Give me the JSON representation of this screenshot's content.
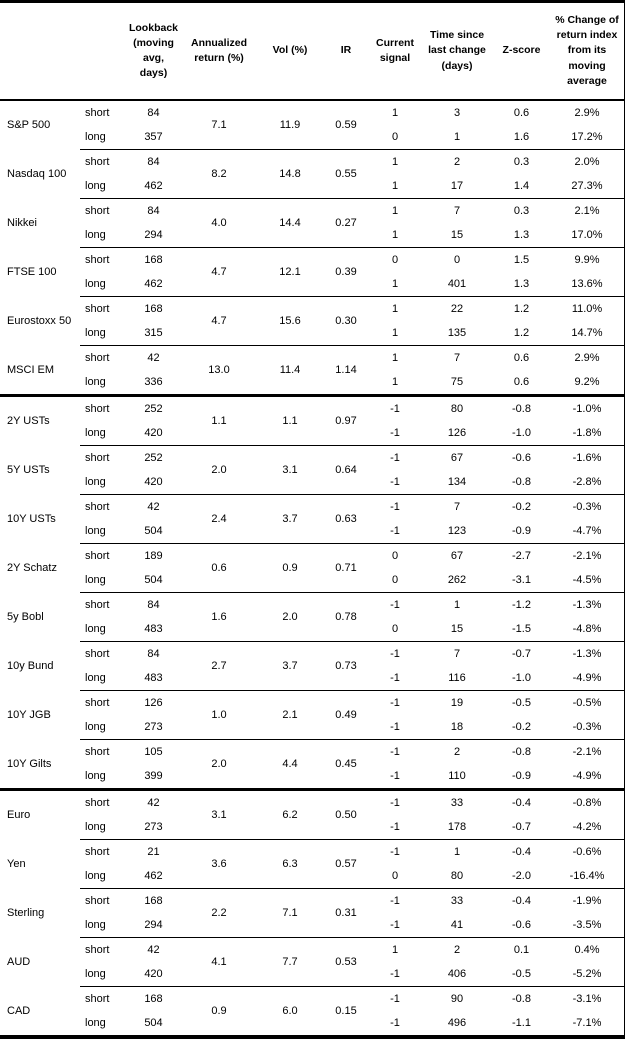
{
  "table": {
    "columns": [
      {
        "key": "asset",
        "label": ""
      },
      {
        "key": "horizon",
        "label": ""
      },
      {
        "key": "lookback",
        "label": "Lookback (moving avg, days)"
      },
      {
        "key": "annualized_return",
        "label": "Annualized return (%)"
      },
      {
        "key": "vol",
        "label": "Vol (%)"
      },
      {
        "key": "ir",
        "label": "IR"
      },
      {
        "key": "current_signal",
        "label": "Current signal"
      },
      {
        "key": "time_since_last_change",
        "label": "Time since last change (days)"
      },
      {
        "key": "z_score",
        "label": "Z-score"
      },
      {
        "key": "pct_change",
        "label": "% Change of return index from its moving average"
      }
    ],
    "sections": [
      {
        "assets": [
          {
            "name": "S&P 500",
            "annualized_return": "7.1",
            "vol": "11.9",
            "ir": "0.59",
            "rows": [
              {
                "horizon": "short",
                "lookback": "84",
                "current_signal": "1",
                "time_since_last_change": "3",
                "z_score": "0.6",
                "pct_change": "2.9%"
              },
              {
                "horizon": "long",
                "lookback": "357",
                "current_signal": "0",
                "time_since_last_change": "1",
                "z_score": "1.6",
                "pct_change": "17.2%"
              }
            ]
          },
          {
            "name": "Nasdaq 100",
            "annualized_return": "8.2",
            "vol": "14.8",
            "ir": "0.55",
            "rows": [
              {
                "horizon": "short",
                "lookback": "84",
                "current_signal": "1",
                "time_since_last_change": "2",
                "z_score": "0.3",
                "pct_change": "2.0%"
              },
              {
                "horizon": "long",
                "lookback": "462",
                "current_signal": "1",
                "time_since_last_change": "17",
                "z_score": "1.4",
                "pct_change": "27.3%"
              }
            ]
          },
          {
            "name": "Nikkei",
            "annualized_return": "4.0",
            "vol": "14.4",
            "ir": "0.27",
            "rows": [
              {
                "horizon": "short",
                "lookback": "84",
                "current_signal": "1",
                "time_since_last_change": "7",
                "z_score": "0.3",
                "pct_change": "2.1%"
              },
              {
                "horizon": "long",
                "lookback": "294",
                "current_signal": "1",
                "time_since_last_change": "15",
                "z_score": "1.3",
                "pct_change": "17.0%"
              }
            ]
          },
          {
            "name": "FTSE 100",
            "annualized_return": "4.7",
            "vol": "12.1",
            "ir": "0.39",
            "rows": [
              {
                "horizon": "short",
                "lookback": "168",
                "current_signal": "0",
                "time_since_last_change": "0",
                "z_score": "1.5",
                "pct_change": "9.9%"
              },
              {
                "horizon": "long",
                "lookback": "462",
                "current_signal": "1",
                "time_since_last_change": "401",
                "z_score": "1.3",
                "pct_change": "13.6%"
              }
            ]
          },
          {
            "name": "Eurostoxx 50",
            "annualized_return": "4.7",
            "vol": "15.6",
            "ir": "0.30",
            "rows": [
              {
                "horizon": "short",
                "lookback": "168",
                "current_signal": "1",
                "time_since_last_change": "22",
                "z_score": "1.2",
                "pct_change": "11.0%"
              },
              {
                "horizon": "long",
                "lookback": "315",
                "current_signal": "1",
                "time_since_last_change": "135",
                "z_score": "1.2",
                "pct_change": "14.7%"
              }
            ]
          },
          {
            "name": "MSCI EM",
            "annualized_return": "13.0",
            "vol": "11.4",
            "ir": "1.14",
            "rows": [
              {
                "horizon": "short",
                "lookback": "42",
                "current_signal": "1",
                "time_since_last_change": "7",
                "z_score": "0.6",
                "pct_change": "2.9%"
              },
              {
                "horizon": "long",
                "lookback": "336",
                "current_signal": "1",
                "time_since_last_change": "75",
                "z_score": "0.6",
                "pct_change": "9.2%"
              }
            ]
          }
        ]
      },
      {
        "assets": [
          {
            "name": "2Y USTs",
            "annualized_return": "1.1",
            "vol": "1.1",
            "ir": "0.97",
            "rows": [
              {
                "horizon": "short",
                "lookback": "252",
                "current_signal": "-1",
                "time_since_last_change": "80",
                "z_score": "-0.8",
                "pct_change": "-1.0%"
              },
              {
                "horizon": "long",
                "lookback": "420",
                "current_signal": "-1",
                "time_since_last_change": "126",
                "z_score": "-1.0",
                "pct_change": "-1.8%"
              }
            ]
          },
          {
            "name": "5Y USTs",
            "annualized_return": "2.0",
            "vol": "3.1",
            "ir": "0.64",
            "rows": [
              {
                "horizon": "short",
                "lookback": "252",
                "current_signal": "-1",
                "time_since_last_change": "67",
                "z_score": "-0.6",
                "pct_change": "-1.6%"
              },
              {
                "horizon": "long",
                "lookback": "420",
                "current_signal": "-1",
                "time_since_last_change": "134",
                "z_score": "-0.8",
                "pct_change": "-2.8%"
              }
            ]
          },
          {
            "name": "10Y USTs",
            "annualized_return": "2.4",
            "vol": "3.7",
            "ir": "0.63",
            "rows": [
              {
                "horizon": "short",
                "lookback": "42",
                "current_signal": "-1",
                "time_since_last_change": "7",
                "z_score": "-0.2",
                "pct_change": "-0.3%"
              },
              {
                "horizon": "long",
                "lookback": "504",
                "current_signal": "-1",
                "time_since_last_change": "123",
                "z_score": "-0.9",
                "pct_change": "-4.7%"
              }
            ]
          },
          {
            "name": "2Y Schatz",
            "annualized_return": "0.6",
            "vol": "0.9",
            "ir": "0.71",
            "rows": [
              {
                "horizon": "short",
                "lookback": "189",
                "current_signal": "0",
                "time_since_last_change": "67",
                "z_score": "-2.7",
                "pct_change": "-2.1%"
              },
              {
                "horizon": "long",
                "lookback": "504",
                "current_signal": "0",
                "time_since_last_change": "262",
                "z_score": "-3.1",
                "pct_change": "-4.5%"
              }
            ]
          },
          {
            "name": "5y Bobl",
            "annualized_return": "1.6",
            "vol": "2.0",
            "ir": "0.78",
            "rows": [
              {
                "horizon": "short",
                "lookback": "84",
                "current_signal": "-1",
                "time_since_last_change": "1",
                "z_score": "-1.2",
                "pct_change": "-1.3%"
              },
              {
                "horizon": "long",
                "lookback": "483",
                "current_signal": "0",
                "time_since_last_change": "15",
                "z_score": "-1.5",
                "pct_change": "-4.8%"
              }
            ]
          },
          {
            "name": "10y Bund",
            "annualized_return": "2.7",
            "vol": "3.7",
            "ir": "0.73",
            "rows": [
              {
                "horizon": "short",
                "lookback": "84",
                "current_signal": "-1",
                "time_since_last_change": "7",
                "z_score": "-0.7",
                "pct_change": "-1.3%"
              },
              {
                "horizon": "long",
                "lookback": "483",
                "current_signal": "-1",
                "time_since_last_change": "116",
                "z_score": "-1.0",
                "pct_change": "-4.9%"
              }
            ]
          },
          {
            "name": "10Y JGB",
            "annualized_return": "1.0",
            "vol": "2.1",
            "ir": "0.49",
            "rows": [
              {
                "horizon": "short",
                "lookback": "126",
                "current_signal": "-1",
                "time_since_last_change": "19",
                "z_score": "-0.5",
                "pct_change": "-0.5%"
              },
              {
                "horizon": "long",
                "lookback": "273",
                "current_signal": "-1",
                "time_since_last_change": "18",
                "z_score": "-0.2",
                "pct_change": "-0.3%"
              }
            ]
          },
          {
            "name": "10Y Gilts",
            "annualized_return": "2.0",
            "vol": "4.4",
            "ir": "0.45",
            "rows": [
              {
                "horizon": "short",
                "lookback": "105",
                "current_signal": "-1",
                "time_since_last_change": "2",
                "z_score": "-0.8",
                "pct_change": "-2.1%"
              },
              {
                "horizon": "long",
                "lookback": "399",
                "current_signal": "-1",
                "time_since_last_change": "110",
                "z_score": "-0.9",
                "pct_change": "-4.9%"
              }
            ]
          }
        ]
      },
      {
        "assets": [
          {
            "name": "Euro",
            "annualized_return": "3.1",
            "vol": "6.2",
            "ir": "0.50",
            "rows": [
              {
                "horizon": "short",
                "lookback": "42",
                "current_signal": "-1",
                "time_since_last_change": "33",
                "z_score": "-0.4",
                "pct_change": "-0.8%"
              },
              {
                "horizon": "long",
                "lookback": "273",
                "current_signal": "-1",
                "time_since_last_change": "178",
                "z_score": "-0.7",
                "pct_change": "-4.2%"
              }
            ]
          },
          {
            "name": "Yen",
            "annualized_return": "3.6",
            "vol": "6.3",
            "ir": "0.57",
            "rows": [
              {
                "horizon": "short",
                "lookback": "21",
                "current_signal": "-1",
                "time_since_last_change": "1",
                "z_score": "-0.4",
                "pct_change": "-0.6%"
              },
              {
                "horizon": "long",
                "lookback": "462",
                "current_signal": "0",
                "time_since_last_change": "80",
                "z_score": "-2.0",
                "pct_change": "-16.4%"
              }
            ]
          },
          {
            "name": "Sterling",
            "annualized_return": "2.2",
            "vol": "7.1",
            "ir": "0.31",
            "rows": [
              {
                "horizon": "short",
                "lookback": "168",
                "current_signal": "-1",
                "time_since_last_change": "33",
                "z_score": "-0.4",
                "pct_change": "-1.9%"
              },
              {
                "horizon": "long",
                "lookback": "294",
                "current_signal": "-1",
                "time_since_last_change": "41",
                "z_score": "-0.6",
                "pct_change": "-3.5%"
              }
            ]
          },
          {
            "name": "AUD",
            "annualized_return": "4.1",
            "vol": "7.7",
            "ir": "0.53",
            "rows": [
              {
                "horizon": "short",
                "lookback": "42",
                "current_signal": "1",
                "time_since_last_change": "2",
                "z_score": "0.1",
                "pct_change": "0.4%"
              },
              {
                "horizon": "long",
                "lookback": "420",
                "current_signal": "-1",
                "time_since_last_change": "406",
                "z_score": "-0.5",
                "pct_change": "-5.2%"
              }
            ]
          },
          {
            "name": "CAD",
            "annualized_return": "0.9",
            "vol": "6.0",
            "ir": "0.15",
            "rows": [
              {
                "horizon": "short",
                "lookback": "168",
                "current_signal": "-1",
                "time_since_last_change": "90",
                "z_score": "-0.8",
                "pct_change": "-3.1%"
              },
              {
                "horizon": "long",
                "lookback": "504",
                "current_signal": "-1",
                "time_since_last_change": "496",
                "z_score": "-1.1",
                "pct_change": "-7.1%"
              }
            ]
          }
        ]
      }
    ]
  }
}
